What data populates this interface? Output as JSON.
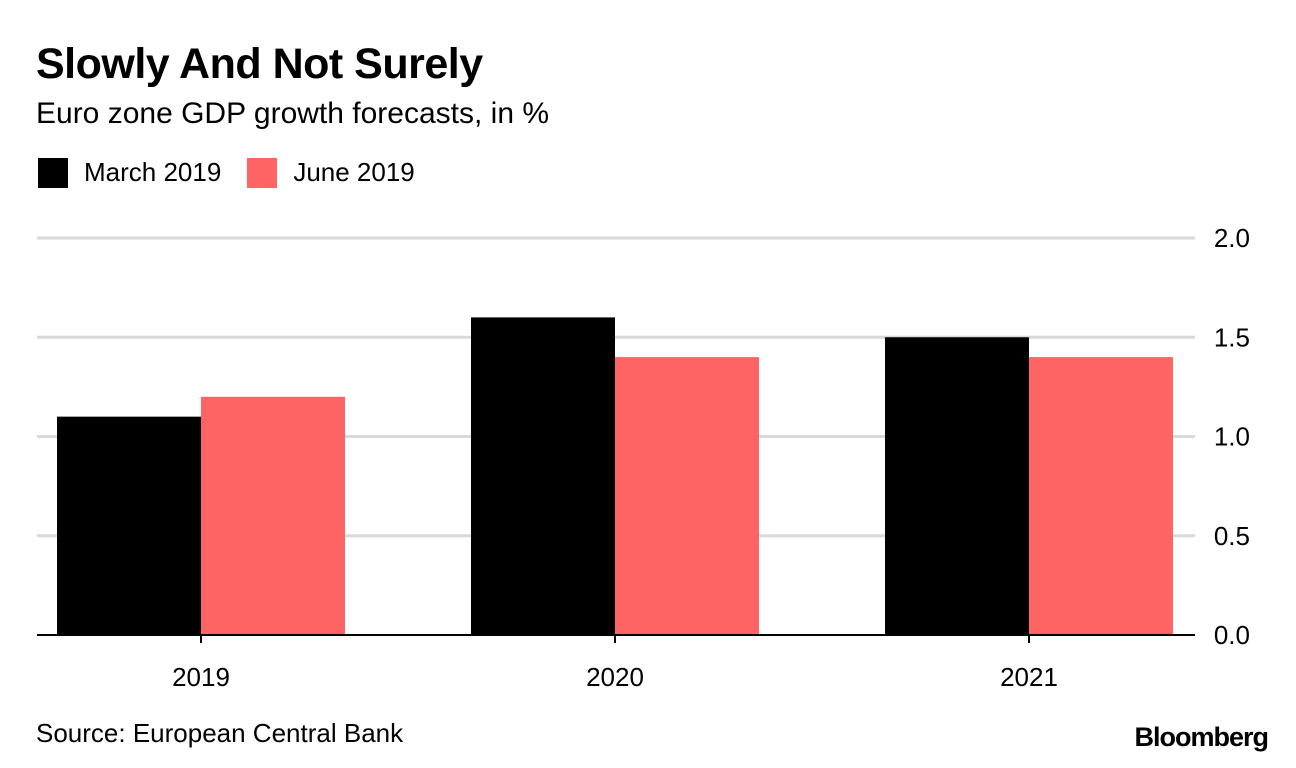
{
  "title": "Slowly And Not Surely",
  "subtitle": "Euro zone GDP growth forecasts, in %",
  "source": "Source: European Central Bank",
  "brand": "Bloomberg",
  "legend": [
    {
      "label": "March 2019",
      "color": "#000000"
    },
    {
      "label": "June 2019",
      "color": "#ff6464"
    }
  ],
  "chart_data": {
    "type": "bar",
    "title": "Slowly And Not Surely",
    "subtitle": "Euro zone GDP growth forecasts, in %",
    "categories": [
      "2019",
      "2020",
      "2021"
    ],
    "series": [
      {
        "name": "March 2019",
        "values": [
          1.1,
          1.6,
          1.5
        ],
        "color": "#000000"
      },
      {
        "name": "June 2019",
        "values": [
          1.2,
          1.4,
          1.4
        ],
        "color": "#ff6464"
      }
    ],
    "ylim": [
      0,
      2.0
    ],
    "yticks": [
      "0.0",
      "0.5",
      "1.0",
      "1.5",
      "2.0"
    ],
    "ytick_values": [
      0,
      0.5,
      1.0,
      1.5,
      2.0
    ],
    "y_axis_side": "right",
    "grid": true,
    "xlabel": "",
    "ylabel": ""
  }
}
